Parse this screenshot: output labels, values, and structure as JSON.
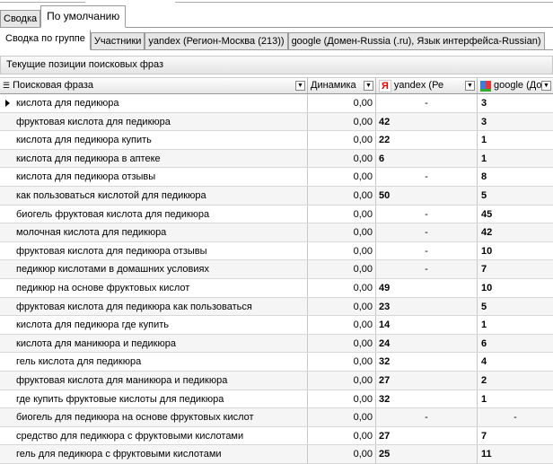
{
  "tabs_top": [
    {
      "label": "Сводка"
    },
    {
      "label": "По умолчанию",
      "active": true
    }
  ],
  "tabs_sub": [
    {
      "label": "Сводка по группе",
      "active": true
    },
    {
      "label": "Участники"
    },
    {
      "label": "yandex (Регион-Москва (213))"
    },
    {
      "label": "google (Домен-Russia (.ru), Язык интерфейса-Russian)"
    }
  ],
  "group_title": "Текущие позиции поисковых фраз",
  "columns": {
    "phrase": "Поисковая фраза",
    "dynamics": "Динамика",
    "yandex": "yandex (Ре",
    "google": "google (До"
  },
  "rows": [
    [
      "кислота для педикюра",
      "0,00",
      "-",
      "3"
    ],
    [
      "фруктовая кислота для педикюра",
      "0,00",
      "42",
      "3"
    ],
    [
      "кислота для педикюра купить",
      "0,00",
      "22",
      "1"
    ],
    [
      "кислота для педикюра в аптеке",
      "0,00",
      "6",
      "1"
    ],
    [
      "кислота для педикюра отзывы",
      "0,00",
      "-",
      "8"
    ],
    [
      "как пользоваться кислотой для педикюра",
      "0,00",
      "50",
      "5"
    ],
    [
      "биогель фруктовая кислота для педикюра",
      "0,00",
      "-",
      "45"
    ],
    [
      "молочная кислота для педикюра",
      "0,00",
      "-",
      "42"
    ],
    [
      "фруктовая кислота для педикюра отзывы",
      "0,00",
      "-",
      "10"
    ],
    [
      "педикюр кислотами в домашних условиях",
      "0,00",
      "-",
      "7"
    ],
    [
      "педикюр на основе фруктовых кислот",
      "0,00",
      "49",
      "10"
    ],
    [
      "фруктовая кислота для педикюра как пользоваться",
      "0,00",
      "23",
      "5"
    ],
    [
      "кислота для педикюра где купить",
      "0,00",
      "14",
      "1"
    ],
    [
      "кислота для маникюра и педикюра",
      "0,00",
      "24",
      "6"
    ],
    [
      "гель кислота для педикюра",
      "0,00",
      "32",
      "4"
    ],
    [
      "фруктовая кислота для маникюра и педикюра",
      "0,00",
      "27",
      "2"
    ],
    [
      "где купить фруктовые кислоты для педикюра",
      "0,00",
      "32",
      "1"
    ],
    [
      "биогель для педикюра на основе фруктовых кислот",
      "0,00",
      "-",
      "-"
    ],
    [
      "средство для педикюра с фруктовыми кислотами",
      "0,00",
      "27",
      "7"
    ],
    [
      "гель для педикюра с фруктовыми кислотами",
      "0,00",
      "25",
      "11"
    ]
  ]
}
